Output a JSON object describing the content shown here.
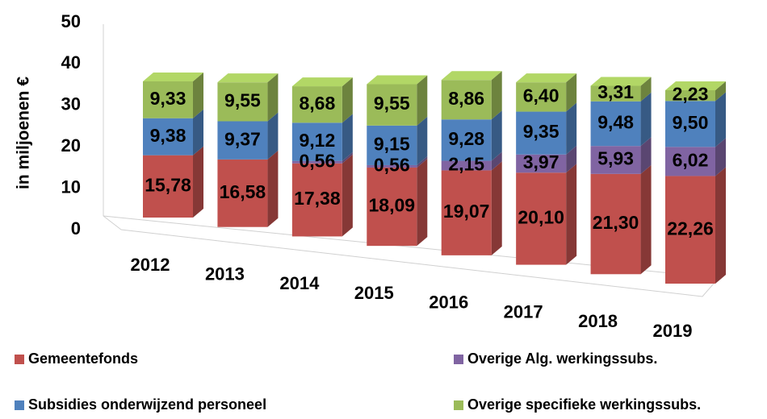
{
  "chart_data": {
    "type": "bar3d_stacked",
    "y_label": "in miljoenen €",
    "categories": [
      "2012",
      "2013",
      "2014",
      "2015",
      "2016",
      "2017",
      "2018",
      "2019"
    ],
    "ylim": [
      0,
      50
    ],
    "yticks": [
      0,
      10,
      20,
      30,
      40,
      50
    ],
    "series": [
      {
        "name": "Gemeentefonds",
        "color": "#c0504d",
        "values": [
          15.78,
          16.58,
          17.38,
          18.09,
          19.07,
          20.1,
          21.3,
          22.26
        ],
        "value_labels": [
          "15,78",
          "16,58",
          "17,38",
          "18,09",
          "19,07",
          "20,10",
          "21,30",
          "22,26"
        ]
      },
      {
        "name": "Overige Alg. werkingssubs.",
        "color": "#8064a2",
        "values": [
          null,
          null,
          0.56,
          0.56,
          2.15,
          3.97,
          5.93,
          6.02
        ],
        "value_labels": [
          null,
          null,
          "0,56",
          "0,56",
          "2,15",
          "3,97",
          "5,93",
          "6,02"
        ]
      },
      {
        "name": "Subsidies onderwijzend personeel",
        "color": "#4f81bd",
        "values": [
          9.38,
          9.37,
          9.12,
          9.15,
          9.28,
          9.35,
          9.48,
          9.5
        ],
        "value_labels": [
          "9,38",
          "9,37",
          "9,12",
          "9,15",
          "9,28",
          "9,35",
          "9,48",
          "9,50"
        ]
      },
      {
        "name": "Overige specifieke werkingssubs.",
        "color": "#9bbb59",
        "values": [
          9.33,
          9.55,
          8.68,
          9.55,
          8.86,
          6.4,
          3.31,
          2.23
        ],
        "value_labels": [
          "9,33",
          "9,55",
          "8,68",
          "9,55",
          "8,86",
          "6,40",
          "3,31",
          "2,23"
        ]
      }
    ]
  }
}
